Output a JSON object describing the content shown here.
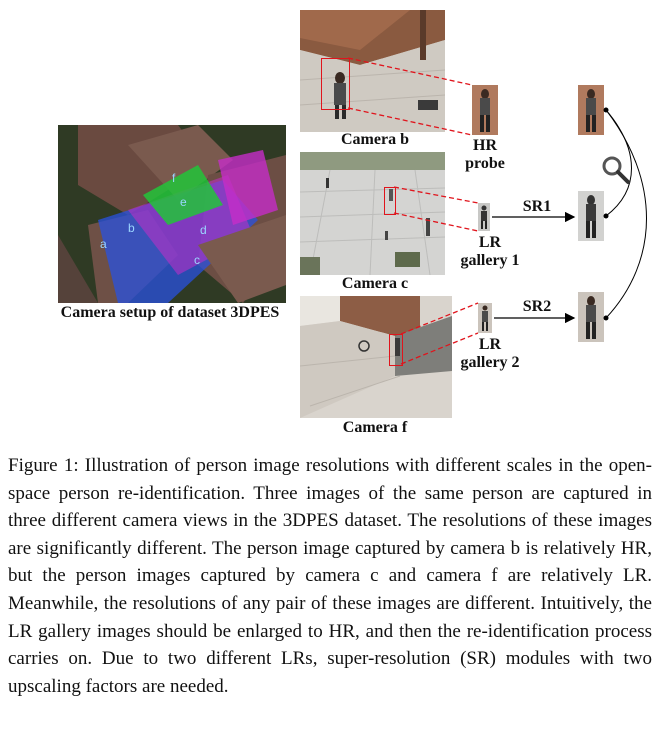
{
  "figure": {
    "setup_label": "Camera setup of dataset 3DPES",
    "setup_zone_letters": [
      "a",
      "b",
      "c",
      "d",
      "e",
      "f"
    ],
    "camera_b_label": "Camera b",
    "camera_c_label": "Camera c",
    "camera_f_label": "Camera f",
    "hr_probe_label_line1": "HR",
    "hr_probe_label_line2": "probe",
    "lr_gallery1_line1": "LR",
    "lr_gallery1_line2": "gallery 1",
    "lr_gallery2_line1": "LR",
    "lr_gallery2_line2": "gallery 2",
    "sr1_label": "SR1",
    "sr2_label": "SR2",
    "colors": {
      "highlight_box": "#e0141c",
      "dashed_link": "#e0141c",
      "arrow": "#000000",
      "setup_blue": "#2a52e0",
      "setup_magenta": "#c62dc8",
      "setup_green": "#22c43a"
    }
  },
  "caption": {
    "text": "Figure 1: Illustration of person image resolutions with different scales in the open-space person re-identification. Three images of the same person are captured in three different camera views in the 3DPES dataset. The resolutions of these images are significantly different. The person image captured by camera b is relatively HR, but the person images captured by camera c and camera f are relatively LR. Meanwhile, the resolutions of any pair of these images are different. Intuitively, the LR gallery images should be enlarged to HR, and then the re-identification process carries on. Due to two different LRs, super-resolution (SR) modules with two upscaling factors are needed."
  }
}
